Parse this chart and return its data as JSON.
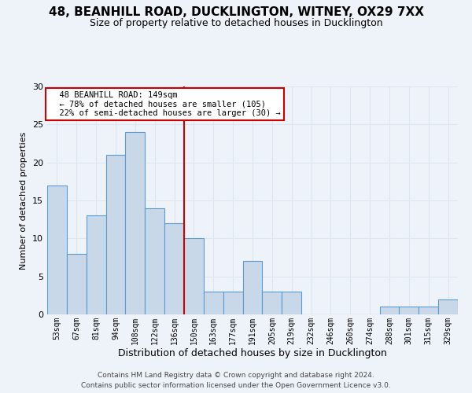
{
  "title_line1": "48, BEANHILL ROAD, DUCKLINGTON, WITNEY, OX29 7XX",
  "title_line2": "Size of property relative to detached houses in Ducklington",
  "xlabel": "Distribution of detached houses by size in Ducklington",
  "ylabel": "Number of detached properties",
  "footer_line1": "Contains HM Land Registry data © Crown copyright and database right 2024.",
  "footer_line2": "Contains public sector information licensed under the Open Government Licence v3.0.",
  "categories": [
    "53sqm",
    "67sqm",
    "81sqm",
    "94sqm",
    "108sqm",
    "122sqm",
    "136sqm",
    "150sqm",
    "163sqm",
    "177sqm",
    "191sqm",
    "205sqm",
    "219sqm",
    "232sqm",
    "246sqm",
    "260sqm",
    "274sqm",
    "288sqm",
    "301sqm",
    "315sqm",
    "329sqm"
  ],
  "values": [
    17,
    8,
    13,
    21,
    24,
    14,
    12,
    10,
    3,
    3,
    7,
    3,
    3,
    0,
    0,
    0,
    0,
    1,
    1,
    1,
    2
  ],
  "bar_color": "#c8d8e8",
  "bar_edge_color": "#5b9bd5",
  "reference_line_index": 7,
  "annotation_title": "48 BEANHILL ROAD: 149sqm",
  "annotation_line1": "← 78% of detached houses are smaller (105)",
  "annotation_line2": "22% of semi-detached houses are larger (30) →",
  "annotation_box_color": "#ffffff",
  "annotation_box_edge": "#cc0000",
  "vline_color": "#cc0000",
  "grid_color": "#dce6f1",
  "ylim": [
    0,
    30
  ],
  "yticks": [
    0,
    5,
    10,
    15,
    20,
    25,
    30
  ],
  "bg_color": "#eef3f9"
}
